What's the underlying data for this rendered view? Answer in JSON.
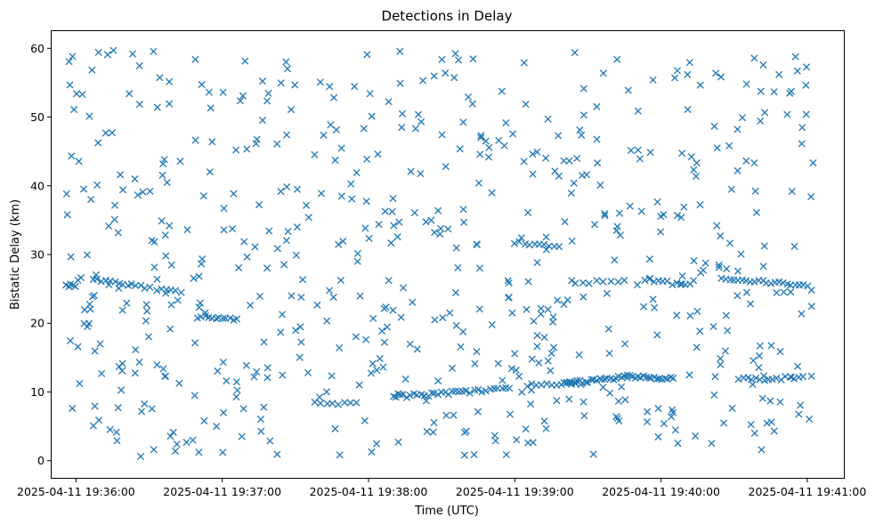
{
  "chart_data": {
    "type": "scatter",
    "title": "Detections in Delay",
    "xlabel": "Time (UTC)",
    "ylabel": "Bistatic Delay (km)",
    "marker": "x",
    "color": "#1f77b4",
    "grid": false,
    "legend": "none",
    "xlim": [
      "2025-04-11 19:35:50",
      "2025-04-11 19:41:15"
    ],
    "ylim": [
      -2.5,
      62.5
    ],
    "x_ticks": [
      "2025-04-11 19:36:00",
      "2025-04-11 19:37:00",
      "2025-04-11 19:38:00",
      "2025-04-11 19:39:00",
      "2025-04-11 19:40:00",
      "2025-04-11 19:41:00"
    ],
    "y_ticks": [
      0,
      10,
      20,
      30,
      40,
      50,
      60
    ],
    "tracks": [
      {
        "t_start": "2025-04-11 19:35:56",
        "t_end": "2025-04-11 19:36:00",
        "delay_start": 25.4,
        "delay_end": 25.5,
        "count": 5
      },
      {
        "t_start": "2025-04-11 19:36:07",
        "t_end": "2025-04-11 19:36:30",
        "delay_start": 26.3,
        "delay_end": 25.2,
        "count": 14
      },
      {
        "t_start": "2025-04-11 19:36:33",
        "t_end": "2025-04-11 19:36:43",
        "delay_start": 24.8,
        "delay_end": 24.6,
        "count": 6
      },
      {
        "t_start": "2025-04-11 19:36:50",
        "t_end": "2025-04-11 19:37:06",
        "delay_start": 20.9,
        "delay_end": 20.5,
        "count": 12
      },
      {
        "t_start": "2025-04-11 19:37:38",
        "t_end": "2025-04-11 19:37:55",
        "delay_start": 8.3,
        "delay_end": 8.5,
        "count": 8
      },
      {
        "t_start": "2025-04-11 19:38:10",
        "t_end": "2025-04-11 19:38:40",
        "delay_start": 9.3,
        "delay_end": 10.0,
        "count": 22
      },
      {
        "t_start": "2025-04-11 19:38:40",
        "t_end": "2025-04-11 19:38:58",
        "delay_start": 10.0,
        "delay_end": 10.5,
        "count": 12
      },
      {
        "t_start": "2025-04-11 19:39:00",
        "t_end": "2025-04-11 19:39:18",
        "delay_start": 31.8,
        "delay_end": 31.1,
        "count": 10
      },
      {
        "t_start": "2025-04-11 19:39:05",
        "t_end": "2025-04-11 19:39:27",
        "delay_start": 11.0,
        "delay_end": 11.2,
        "count": 12
      },
      {
        "t_start": "2025-04-11 19:39:20",
        "t_end": "2025-04-11 19:39:46",
        "delay_start": 11.2,
        "delay_end": 12.2,
        "count": 24
      },
      {
        "t_start": "2025-04-11 19:39:46",
        "t_end": "2025-04-11 19:40:05",
        "delay_start": 12.2,
        "delay_end": 12.0,
        "count": 18
      },
      {
        "t_start": "2025-04-11 19:39:25",
        "t_end": "2025-04-11 19:39:45",
        "delay_start": 25.9,
        "delay_end": 26.2,
        "count": 8
      },
      {
        "t_start": "2025-04-11 19:39:55",
        "t_end": "2025-04-11 19:40:12",
        "delay_start": 26.2,
        "delay_end": 25.5,
        "count": 10
      },
      {
        "t_start": "2025-04-11 19:40:25",
        "t_end": "2025-04-11 19:41:00",
        "delay_start": 26.3,
        "delay_end": 25.6,
        "count": 22
      },
      {
        "t_start": "2025-04-11 19:40:32",
        "t_end": "2025-04-11 19:40:58",
        "delay_start": 11.8,
        "delay_end": 12.1,
        "count": 16
      }
    ],
    "clutter": {
      "count": 620,
      "t_start": "2025-04-11 19:35:56",
      "t_end": "2025-04-11 19:41:03",
      "delay_min": 0.5,
      "delay_max": 59.8
    }
  }
}
